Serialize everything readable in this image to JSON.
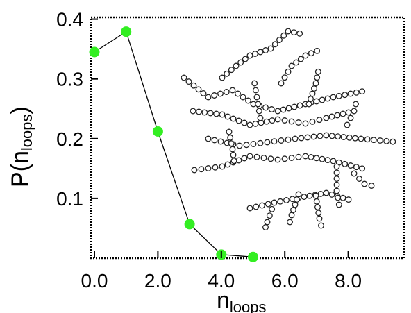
{
  "chart_data": {
    "type": "line",
    "xlabel": {
      "main": "n",
      "sub": "loops"
    },
    "ylabel": {
      "main": "P(n",
      "sub": "loops",
      "close": ")"
    },
    "xlim": [
      0,
      10
    ],
    "ylim": [
      0,
      0.4
    ],
    "x_ticks": [
      {
        "value": 0,
        "label": "0.0"
      },
      {
        "value": 2,
        "label": "2.0"
      },
      {
        "value": 4,
        "label": "4.0"
      },
      {
        "value": 6,
        "label": "6.0"
      },
      {
        "value": 8,
        "label": "8.0"
      }
    ],
    "y_ticks": [
      {
        "value": 0.1,
        "label": "0.1"
      },
      {
        "value": 0.2,
        "label": "0.2"
      },
      {
        "value": 0.3,
        "label": "0.3"
      },
      {
        "value": 0.4,
        "label": "0.4"
      }
    ],
    "series": [
      {
        "x": [
          0,
          1,
          2,
          3,
          4,
          5
        ],
        "y": [
          0.345,
          0.379,
          0.212,
          0.057,
          0.006,
          0.002
        ],
        "line_color": "#000000",
        "marker_color": "#33ee22"
      }
    ],
    "grid": false,
    "inset": "branched polymer structure drawn as a tree of small hollow circular beads"
  }
}
